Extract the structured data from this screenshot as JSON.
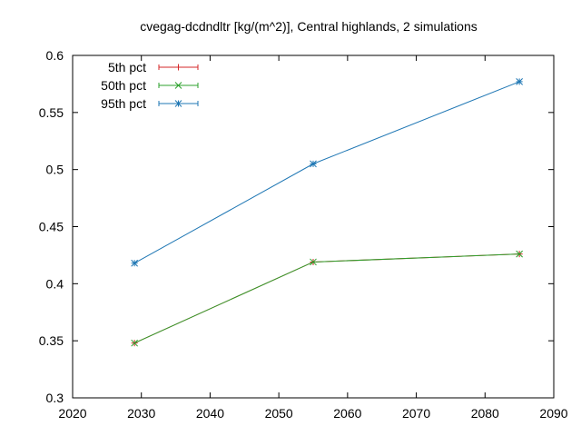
{
  "chart_data": {
    "type": "line",
    "title": "cvegag-dcdndltr [kg/(m^2)], Central highlands, 2 simulations",
    "xlabel": "",
    "ylabel": "",
    "xlim": [
      2020,
      2090
    ],
    "ylim": [
      0.3,
      0.6
    ],
    "x_ticks": [
      2020,
      2030,
      2040,
      2050,
      2060,
      2070,
      2080,
      2090
    ],
    "y_ticks": [
      0.3,
      0.35,
      0.4,
      0.45,
      0.5,
      0.55,
      0.6
    ],
    "x_tick_labels": [
      "2020",
      "2030",
      "2040",
      "2050",
      "2060",
      "2070",
      "2080",
      "2090"
    ],
    "y_tick_labels": [
      "0.3",
      "0.35",
      "0.4",
      "0.45",
      "0.5",
      "0.55",
      "0.6"
    ],
    "legend_position": "top-left",
    "grid": false,
    "x": [
      2029,
      2055,
      2085
    ],
    "series": [
      {
        "name": "5th pct",
        "color": "#d62728",
        "marker": "plus",
        "values": [
          0.348,
          0.419,
          0.426
        ]
      },
      {
        "name": "50th pct",
        "color": "#2ca02c",
        "marker": "cross",
        "values": [
          0.348,
          0.419,
          0.426
        ]
      },
      {
        "name": "95th pct",
        "color": "#1f77b4",
        "marker": "star",
        "values": [
          0.418,
          0.505,
          0.577
        ]
      }
    ]
  }
}
